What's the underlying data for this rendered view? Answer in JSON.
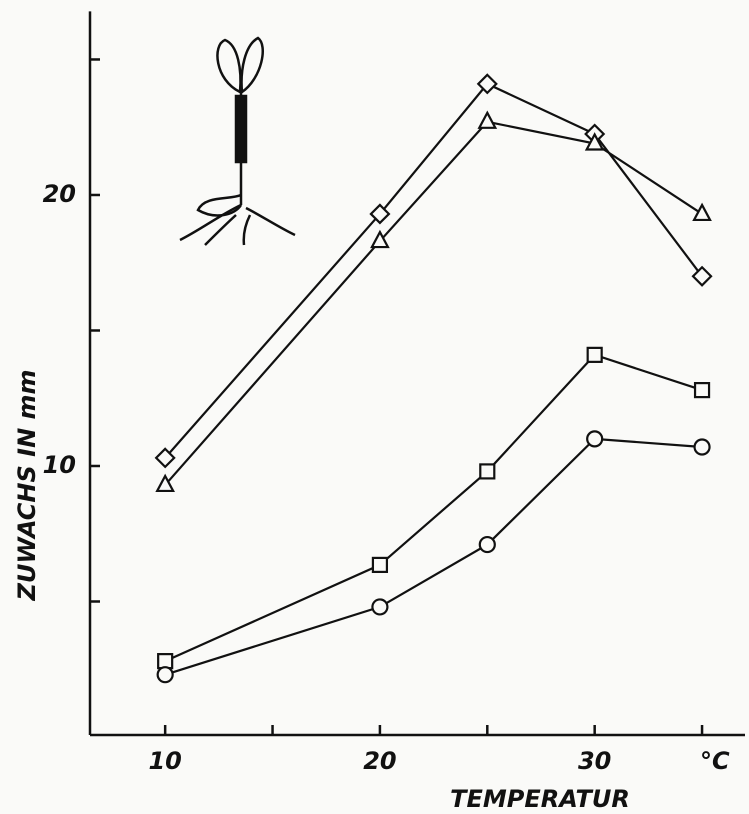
{
  "chart_data": {
    "type": "line",
    "xlabel": "TEMPERATUR",
    "ylabel": "ZUWACHS IN mm",
    "x_unit": "°C",
    "x": [
      10,
      20,
      25,
      30,
      35
    ],
    "series": [
      {
        "marker": "diamond",
        "color": "#111111",
        "values": [
          10.3,
          19.3,
          24.1,
          22.25,
          17.0
        ]
      },
      {
        "marker": "triangle",
        "color": "#111111",
        "values": [
          9.3,
          18.3,
          22.7,
          21.9,
          19.3
        ]
      },
      {
        "marker": "square",
        "color": "#111111",
        "values": [
          2.8,
          6.35,
          9.8,
          14.1,
          12.8
        ]
      },
      {
        "marker": "circle",
        "color": "#111111",
        "values": [
          2.3,
          4.8,
          7.1,
          11.0,
          10.7
        ]
      }
    ],
    "xlim": [
      6.5,
      37
    ],
    "ylim": [
      0,
      26.7
    ],
    "xticks": [
      10,
      20,
      30
    ],
    "xminor": [
      15,
      25,
      35
    ],
    "yticks": [
      10,
      20
    ],
    "yminor": [
      5,
      15,
      25
    ]
  }
}
